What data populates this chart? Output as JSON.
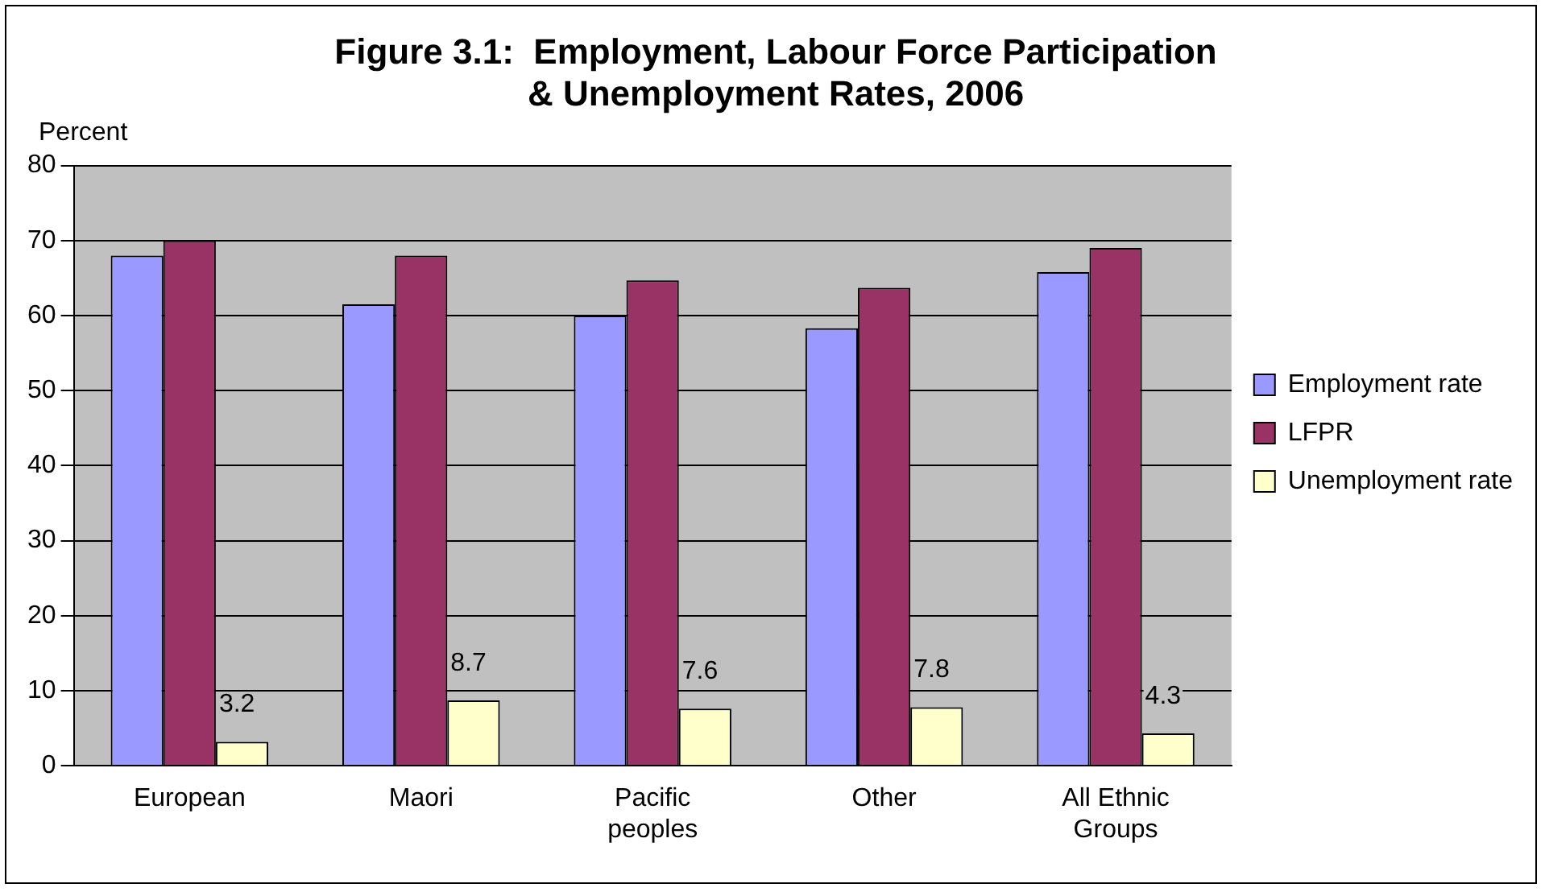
{
  "chart_data": {
    "type": "bar",
    "title": "Figure 3.1:  Employment, Labour Force Participation & Unemployment Rates, 2006",
    "ylabel": "Percent",
    "categories": [
      "European",
      "Maori",
      "Pacific peoples",
      "Other",
      "All Ethnic Groups"
    ],
    "series": [
      {
        "name": "Employment rate",
        "color": "#9999ff",
        "values": [
          68,
          61.5,
          60,
          58.3,
          65.8
        ]
      },
      {
        "name": "LFPR",
        "color": "#993366",
        "values": [
          70,
          68,
          64.7,
          63.7,
          69
        ]
      },
      {
        "name": "Unemployment rate",
        "color": "#ffffcc",
        "values": [
          3.2,
          8.7,
          7.6,
          7.8,
          4.3
        ],
        "value_labels": [
          "3.2",
          "8.7",
          "7.6",
          "7.8",
          "4.3"
        ]
      }
    ],
    "ylim": [
      0,
      80
    ],
    "yticks": [
      0,
      10,
      20,
      30,
      40,
      50,
      60,
      70,
      80
    ],
    "grid": "y",
    "legend": "right"
  }
}
